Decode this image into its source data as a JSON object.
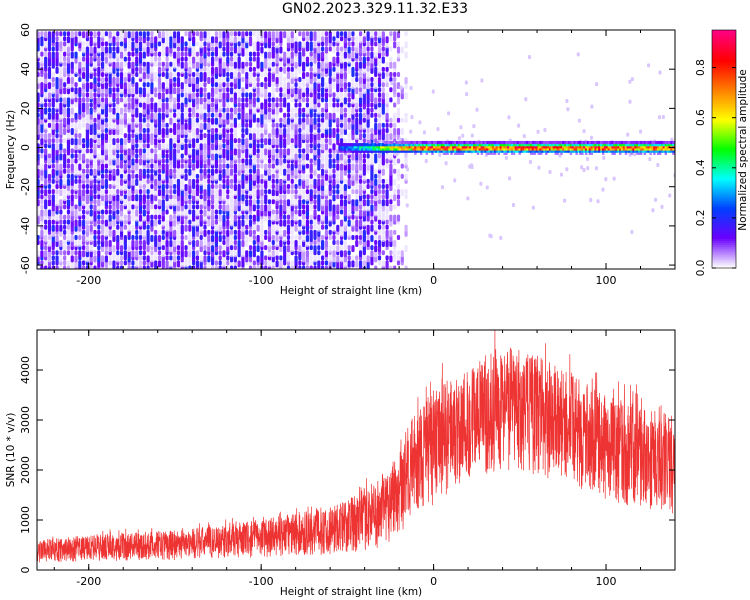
{
  "title": "GN02.2023.329.11.32.E33",
  "chart_data": [
    {
      "type": "heatmap",
      "xlabel": "Height of straight line (km)",
      "ylabel": "Frequency (Hz)",
      "xlim": [
        -230,
        140
      ],
      "ylim": [
        -62,
        60
      ],
      "xticks": [
        -200,
        -100,
        0,
        100
      ],
      "yticks": [
        -60,
        -40,
        -20,
        0,
        20,
        40,
        60
      ],
      "colorbar": {
        "label": "Normalized spectral amplitude",
        "range": [
          0,
          0.95
        ],
        "ticks": [
          0.0,
          0.2,
          0.4,
          0.6,
          0.8
        ],
        "colormap": [
          "#ffffff",
          "#6a00ff",
          "#0040ff",
          "#00ffff",
          "#00ff00",
          "#ffff00",
          "#ff8000",
          "#ff0000",
          "#ff0080"
        ]
      },
      "features": {
        "broadband_noise_x_range": [
          -230,
          -30
        ],
        "narrow_band_center_hz": 0,
        "narrow_band_x_range": [
          -55,
          140
        ],
        "narrow_band_peak_amplitude": 0.85
      },
      "grid": false
    },
    {
      "type": "line",
      "xlabel": "Height of straight line (km)",
      "ylabel": "SNR (10 * v/v)",
      "xlim": [
        -230,
        140
      ],
      "ylim": [
        0,
        4800
      ],
      "xticks": [
        -200,
        -100,
        0,
        100
      ],
      "yticks": [
        0,
        1000,
        2000,
        3000,
        4000
      ],
      "series": [
        {
          "color": "#ee3333",
          "envelope": {
            "x": [
              -230,
              -200,
              -150,
              -100,
              -60,
              -45,
              -30,
              -20,
              -10,
              0,
              20,
              40,
              60,
              80,
              100,
              120,
              140
            ],
            "low": [
              150,
              170,
              200,
              250,
              300,
              350,
              450,
              700,
              1100,
              1300,
              1800,
              2000,
              1900,
              1700,
              1400,
              1200,
              1100
            ],
            "high": [
              600,
              700,
              800,
              1000,
              1300,
              1500,
              1900,
              2500,
              3200,
              3600,
              4100,
              4500,
              4300,
              3900,
              3500,
              3300,
              3100
            ]
          }
        }
      ],
      "grid": false
    }
  ]
}
